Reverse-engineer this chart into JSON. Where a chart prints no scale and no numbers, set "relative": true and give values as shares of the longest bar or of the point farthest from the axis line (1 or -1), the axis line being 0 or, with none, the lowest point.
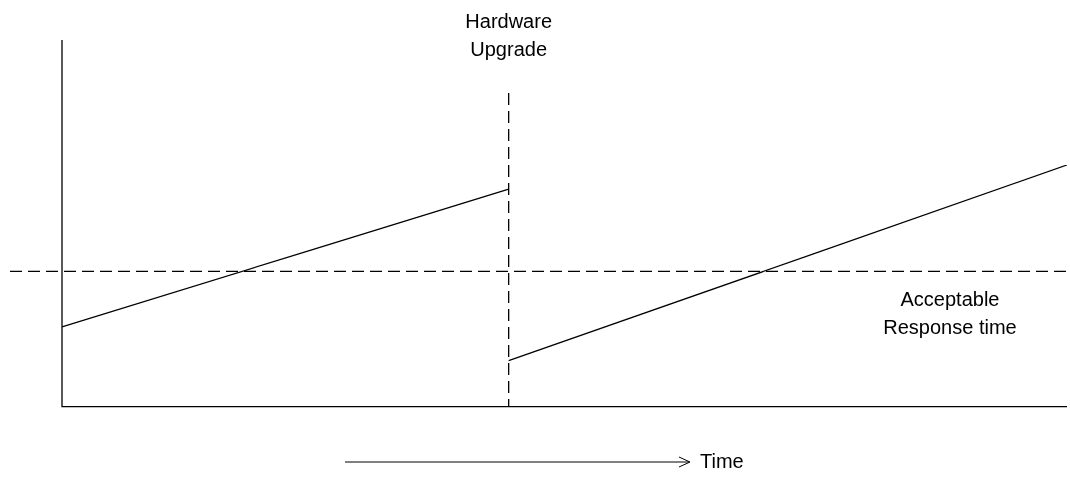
{
  "chart_data": {
    "type": "line",
    "relative": true,
    "xlabel": "Time",
    "categories": [
      null,
      null,
      null,
      null,
      null,
      null,
      null,
      null,
      null,
      null
    ],
    "series": [
      {
        "color": "#000000",
        "values": [
          0.33,
          null,
          null,
          null,
          0.9,
          null,
          null,
          null,
          null,
          null
        ]
      },
      {
        "color": "#000000",
        "values": [
          null,
          null,
          null,
          null,
          0.19,
          null,
          null,
          null,
          null,
          1
        ]
      }
    ],
    "ref_lines": [
      {
        "axis": "y",
        "value": 0.56,
        "label": "Acceptable\nResponse time",
        "line_style": "dashed",
        "color": "#000000"
      }
    ],
    "annotations": [
      "Hardware\nUpgrade"
    ],
    "grid": false,
    "legend": false,
    "marker": "none",
    "line_style": "solid"
  }
}
